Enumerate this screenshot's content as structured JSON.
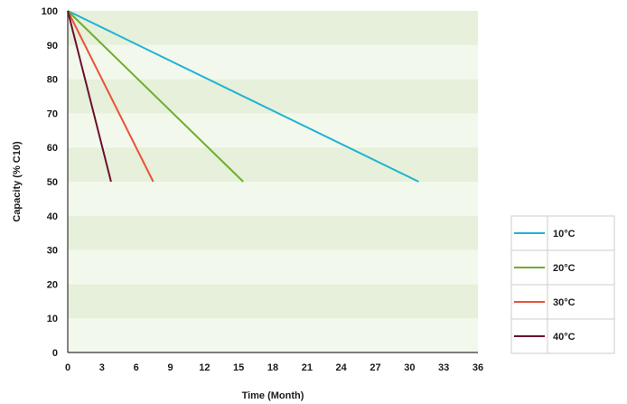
{
  "colors": {
    "band_dark": "#e6f0da",
    "band_light": "#f3f8ec",
    "axis": "#333333",
    "legend_border": "#c9cfc4"
  },
  "chart_data": {
    "type": "line",
    "xlabel": "Time (Month)",
    "ylabel": "Capacity (% C10)",
    "xlim": [
      0,
      36
    ],
    "ylim": [
      0,
      100
    ],
    "xticks": [
      0,
      3,
      6,
      9,
      12,
      15,
      18,
      21,
      24,
      27,
      30,
      33,
      36
    ],
    "yticks": [
      0,
      10,
      20,
      30,
      40,
      50,
      60,
      70,
      80,
      90,
      100
    ],
    "grid": "horizontal alternating bands",
    "legend_position": "right",
    "series": [
      {
        "name": "10°C",
        "color": "#1fb3d4",
        "x": [
          0,
          30.8
        ],
        "y": [
          100,
          50
        ]
      },
      {
        "name": "20°C",
        "color": "#6fae2e",
        "x": [
          0,
          15.4
        ],
        "y": [
          100,
          50
        ]
      },
      {
        "name": "30°C",
        "color": "#e8533a",
        "x": [
          0,
          7.5
        ],
        "y": [
          100,
          50
        ]
      },
      {
        "name": "40°C",
        "color": "#6b0f2e",
        "x": [
          0,
          3.8
        ],
        "y": [
          100,
          50
        ]
      }
    ]
  }
}
